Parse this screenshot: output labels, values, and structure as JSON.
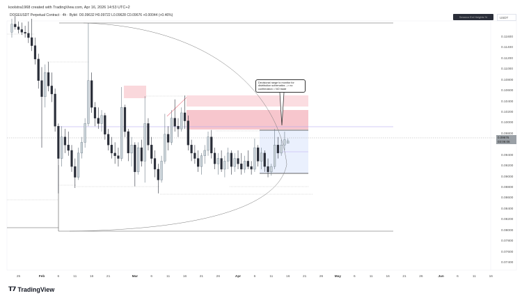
{
  "header": {
    "credit": "koolstra1968 created with TradingView.com, Apr 16, 2026 14:53 UTC+2"
  },
  "legend": {
    "symbol": "DOGEUSDT Perpetual Contract · 4h · Bybit",
    "open": "O0.09632",
    "high": "H0.09722",
    "low": "L0.09628",
    "close": "C0.09676",
    "change": "+0.00044 (+0.46%)"
  },
  "toolbar": {
    "label": "Session  Ext  Heights  %",
    "currency": "USDT"
  },
  "price_tag": {
    "price": "0.09676",
    "countdown": "03:06:06"
  },
  "callout": {
    "text": "Decisional range to monitor for distribution schematics --> no confirmation = NO trade"
  },
  "brand": {
    "logo": "TradingView"
  },
  "colors": {
    "up": "#6b7a86",
    "down": "#2a2e39",
    "zone": "#f5b8c0",
    "range_box": "#e3e9fb",
    "level": "#8e7cf0"
  },
  "chart_data": {
    "type": "candlestick",
    "interval_shown": "4h",
    "start_date": "2026-01-23",
    "y_ticks": [
      "0.11600",
      "0.11400",
      "0.11200",
      "0.11000",
      "0.10800",
      "0.10600",
      "0.10400",
      "0.10200",
      "0.10000",
      "0.09800",
      "0.09400",
      "0.09200",
      "0.09000",
      "0.08800",
      "0.08600",
      "0.08400",
      "0.08200",
      "0.08000",
      "0.07800",
      "0.07600",
      "0.07400"
    ],
    "x_ticks": [
      {
        "label": "25",
        "date": "2026-01-25"
      },
      {
        "label": "Feb",
        "date": "2026-02-01",
        "bold": true
      },
      {
        "label": "6",
        "date": "2026-02-06"
      },
      {
        "label": "11",
        "date": "2026-02-11"
      },
      {
        "label": "16",
        "date": "2026-02-16"
      },
      {
        "label": "21",
        "date": "2026-02-21"
      },
      {
        "label": "Mar",
        "date": "2026-03-01",
        "bold": true
      },
      {
        "label": "6",
        "date": "2026-03-06"
      },
      {
        "label": "11",
        "date": "2026-03-11"
      },
      {
        "label": "16",
        "date": "2026-03-16"
      },
      {
        "label": "21",
        "date": "2026-03-21"
      },
      {
        "label": "26",
        "date": "2026-03-26"
      },
      {
        "label": "Apr",
        "date": "2026-04-01",
        "bold": true
      },
      {
        "label": "6",
        "date": "2026-04-06"
      },
      {
        "label": "11",
        "date": "2026-04-11"
      },
      {
        "label": "16",
        "date": "2026-04-16"
      },
      {
        "label": "21",
        "date": "2026-04-21"
      },
      {
        "label": "26",
        "date": "2026-04-26"
      },
      {
        "label": "May",
        "date": "2026-05-01",
        "bold": true
      },
      {
        "label": "6",
        "date": "2026-05-06"
      },
      {
        "label": "11",
        "date": "2026-05-11"
      },
      {
        "label": "16",
        "date": "2026-05-16"
      },
      {
        "label": "21",
        "date": "2026-05-21"
      },
      {
        "label": "26",
        "date": "2026-05-26"
      },
      {
        "label": "Jun",
        "date": "2026-06-01",
        "bold": true
      },
      {
        "label": "6",
        "date": "2026-06-06"
      },
      {
        "label": "11",
        "date": "2026-06-11"
      },
      {
        "label": "16",
        "date": "2026-06-16"
      }
    ],
    "ohlc": [
      [
        0.117,
        0.1195,
        0.116,
        0.1185
      ],
      [
        0.1185,
        0.12,
        0.1175,
        0.118
      ],
      [
        0.118,
        0.119,
        0.1168,
        0.1175
      ],
      [
        0.1175,
        0.1188,
        0.1165,
        0.117
      ],
      [
        0.117,
        0.1182,
        0.116,
        0.1168
      ],
      [
        0.1168,
        0.119,
        0.115,
        0.116
      ],
      [
        0.116,
        0.1195,
        0.1135,
        0.1145
      ],
      [
        0.1145,
        0.116,
        0.111,
        0.112
      ],
      [
        0.112,
        0.113,
        0.1065,
        0.108
      ],
      [
        0.108,
        0.1105,
        0.0955,
        0.105
      ],
      [
        0.105,
        0.111,
        0.103,
        0.1095
      ],
      [
        0.1095,
        0.1115,
        0.106,
        0.107
      ],
      [
        0.107,
        0.1095,
        0.104,
        0.1055
      ],
      [
        0.1055,
        0.1065,
        0.0985,
        0.0995
      ],
      [
        0.0995,
        0.1,
        0.087,
        0.0935
      ],
      [
        0.0935,
        0.0995,
        0.092,
        0.0975
      ],
      [
        0.0975,
        0.099,
        0.0945,
        0.096
      ],
      [
        0.096,
        0.0985,
        0.094,
        0.095
      ],
      [
        0.095,
        0.096,
        0.091,
        0.092
      ],
      [
        0.092,
        0.0935,
        0.088,
        0.09
      ],
      [
        0.09,
        0.0955,
        0.0895,
        0.0945
      ],
      [
        0.0945,
        0.0975,
        0.0935,
        0.0965
      ],
      [
        0.0965,
        0.101,
        0.0955,
        0.1
      ],
      [
        0.1,
        0.1187,
        0.0995,
        0.108
      ],
      [
        0.108,
        0.1095,
        0.102,
        0.103
      ],
      [
        0.103,
        0.104,
        0.0995,
        0.101
      ],
      [
        0.101,
        0.103,
        0.099,
        0.1
      ],
      [
        0.1,
        0.1025,
        0.0985,
        0.1015
      ],
      [
        0.1015,
        0.102,
        0.097,
        0.098
      ],
      [
        0.098,
        0.099,
        0.095,
        0.096
      ],
      [
        0.096,
        0.0975,
        0.0935,
        0.0945
      ],
      [
        0.0945,
        0.0965,
        0.0925,
        0.094
      ],
      [
        0.094,
        0.0955,
        0.092,
        0.0935
      ],
      [
        0.0935,
        0.1068,
        0.093,
        0.103
      ],
      [
        0.103,
        0.1035,
        0.0975,
        0.0985
      ],
      [
        0.0985,
        0.099,
        0.093,
        0.0945
      ],
      [
        0.0945,
        0.0975,
        0.092,
        0.096
      ],
      [
        0.096,
        0.0965,
        0.0883,
        0.091
      ],
      [
        0.091,
        0.0965,
        0.0905,
        0.0955
      ],
      [
        0.0955,
        0.097,
        0.092,
        0.093
      ],
      [
        0.093,
        0.1051,
        0.089,
        0.1
      ],
      [
        0.1,
        0.101,
        0.095,
        0.096
      ],
      [
        0.096,
        0.0975,
        0.0925,
        0.0935
      ],
      [
        0.0935,
        0.095,
        0.09,
        0.0915
      ],
      [
        0.0915,
        0.0925,
        0.087,
        0.0895
      ],
      [
        0.0895,
        0.094,
        0.089,
        0.093
      ],
      [
        0.093,
        0.1018,
        0.0925,
        0.098
      ],
      [
        0.098,
        0.0995,
        0.095,
        0.0965
      ],
      [
        0.0965,
        0.1025,
        0.096,
        0.101
      ],
      [
        0.101,
        0.1045,
        0.0985,
        0.0995
      ],
      [
        0.0995,
        0.101,
        0.0975,
        0.099
      ],
      [
        0.099,
        0.103,
        0.0985,
        0.102
      ],
      [
        0.102,
        0.1052,
        0.099,
        0.1005
      ],
      [
        0.1005,
        0.1015,
        0.095,
        0.096
      ],
      [
        0.096,
        0.097,
        0.093,
        0.0945
      ],
      [
        0.0945,
        0.096,
        0.0925,
        0.0935
      ],
      [
        0.0935,
        0.095,
        0.091,
        0.092
      ],
      [
        0.092,
        0.0945,
        0.0905,
        0.094
      ],
      [
        0.094,
        0.096,
        0.0925,
        0.095
      ],
      [
        0.095,
        0.0985,
        0.094,
        0.0975
      ],
      [
        0.0975,
        0.0988,
        0.0935,
        0.0945
      ],
      [
        0.0945,
        0.0955,
        0.0915,
        0.0925
      ],
      [
        0.0925,
        0.0945,
        0.0905,
        0.0935
      ],
      [
        0.0935,
        0.095,
        0.091,
        0.0915
      ],
      [
        0.0915,
        0.094,
        0.09,
        0.093
      ],
      [
        0.093,
        0.0955,
        0.0915,
        0.0945
      ],
      [
        0.0945,
        0.095,
        0.0905,
        0.092
      ],
      [
        0.092,
        0.0945,
        0.091,
        0.0935
      ],
      [
        0.0935,
        0.095,
        0.0915,
        0.0925
      ],
      [
        0.0925,
        0.0945,
        0.0905,
        0.0915
      ],
      [
        0.0915,
        0.094,
        0.0908,
        0.093
      ],
      [
        0.093,
        0.095,
        0.0915,
        0.092
      ],
      [
        0.092,
        0.093,
        0.0905,
        0.0915
      ],
      [
        0.0915,
        0.0972,
        0.091,
        0.0955
      ],
      [
        0.0955,
        0.096,
        0.092,
        0.093
      ],
      [
        0.093,
        0.0955,
        0.0915,
        0.0945
      ],
      [
        0.0945,
        0.095,
        0.091,
        0.092
      ],
      [
        0.092,
        0.0935,
        0.09,
        0.091
      ],
      [
        0.091,
        0.0925,
        0.0903,
        0.092
      ],
      [
        0.092,
        0.099,
        0.0915,
        0.096
      ],
      [
        0.096,
        0.0975,
        0.0935,
        0.0945
      ],
      [
        0.0945,
        0.097,
        0.094,
        0.096
      ],
      [
        0.096,
        0.0985,
        0.095,
        0.097
      ],
      [
        0.09632,
        0.09722,
        0.09628,
        0.09676
      ]
    ]
  }
}
